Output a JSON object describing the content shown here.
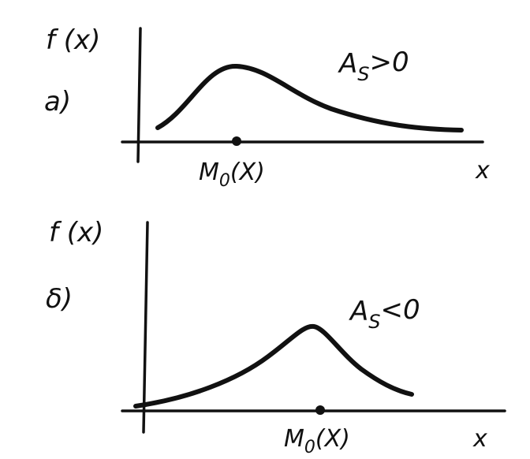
{
  "panels": [
    {
      "letter": "a)",
      "ylabel": "f (x)",
      "xlabel": "x",
      "condition_base": "A",
      "condition_sub": "S",
      "condition_rel": ">0",
      "mode_label": "M",
      "mode_sub": "0",
      "mode_arg": "(X)"
    },
    {
      "letter": "δ)",
      "ylabel": "f (x)",
      "xlabel": "x",
      "condition_base": "A",
      "condition_sub": "S",
      "condition_rel": "<0",
      "mode_label": "M",
      "mode_sub": "0",
      "mode_arg": "(X)"
    }
  ]
}
